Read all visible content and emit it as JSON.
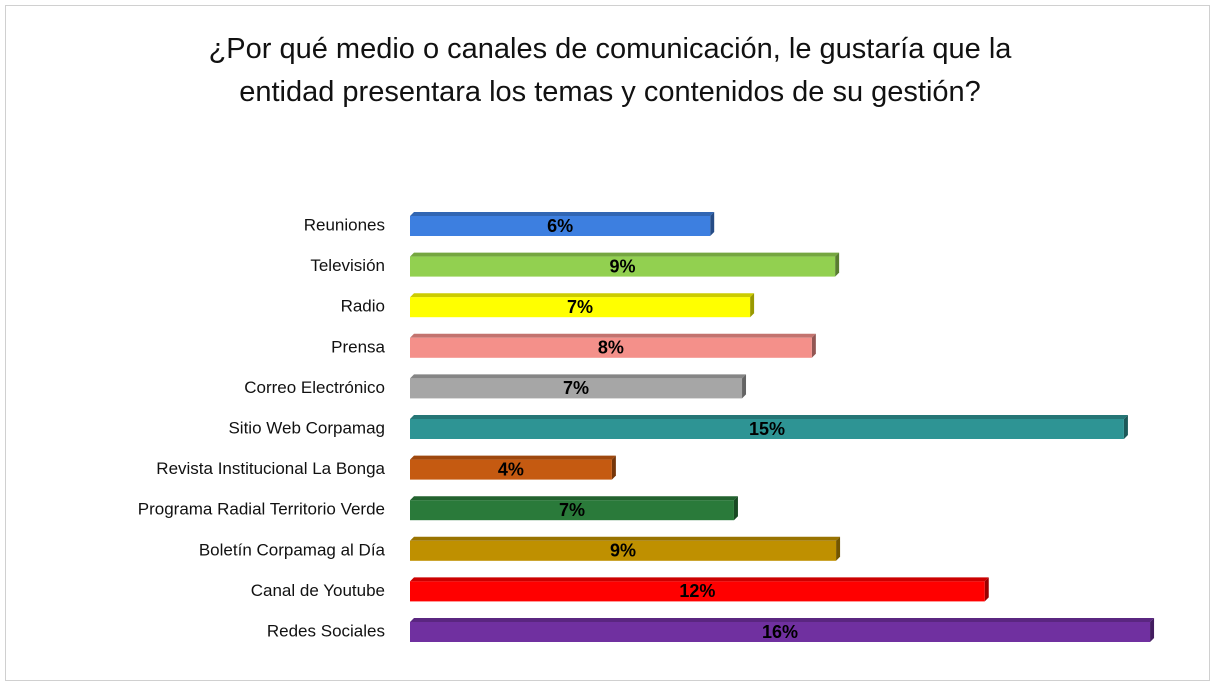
{
  "chart_data": {
    "type": "bar",
    "orientation": "horizontal",
    "title": "¿Por qué medio o canales de comunicación, le gustaría que la entidad presentara los temas y contenidos de su gestión?",
    "categories": [
      "Reuniones",
      "Televisión",
      "Radio",
      "Prensa",
      "Correo Electrónico",
      "Sitio Web Corpamag",
      "Revista Institucional La Bonga",
      "Programa Radial Territorio Verde",
      "Boletín Corpamag al Día",
      "Canal de Youtube",
      "Redes Sociales"
    ],
    "values": [
      6.32,
      8.95,
      7.16,
      8.46,
      6.99,
      15.03,
      4.25,
      6.82,
      8.97,
      12.1,
      15.58
    ],
    "value_labels": [
      "6%",
      "9%",
      "7%",
      "8%",
      "7%",
      "15%",
      "4%",
      "7%",
      "9%",
      "12%",
      "16%"
    ],
    "colors": [
      "#3d7fe0",
      "#92d050",
      "#ffff00",
      "#f4908a",
      "#a6a6a6",
      "#2e9494",
      "#c55a11",
      "#2a7a3a",
      "#bf9000",
      "#ff0000",
      "#7030a0"
    ]
  }
}
